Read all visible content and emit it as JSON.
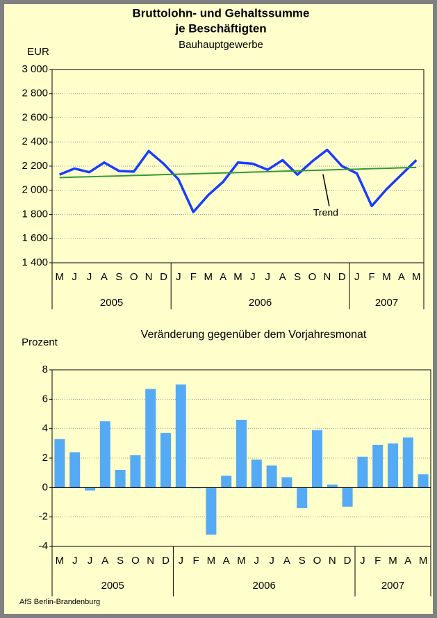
{
  "footer": "AfS Berlin-Brandenburg",
  "chart_data": [
    {
      "type": "line",
      "title": [
        "Bruttolohn- und Gehaltssumme",
        "je Beschäftigten"
      ],
      "subtitle": "Bauhauptgewerbe",
      "y_label": "EUR",
      "categories": [
        "M",
        "J",
        "J",
        "A",
        "S",
        "O",
        "N",
        "D",
        "J",
        "F",
        "M",
        "A",
        "M",
        "J",
        "J",
        "A",
        "S",
        "O",
        "N",
        "D",
        "J",
        "F",
        "M",
        "A",
        "M"
      ],
      "year_groups": [
        {
          "label": "2005",
          "span": 8
        },
        {
          "label": "2006",
          "span": 12
        },
        {
          "label": "2007",
          "span": 5
        }
      ],
      "series": [
        {
          "color": "#1a3cff",
          "values": [
            2130,
            2180,
            2150,
            2230,
            2160,
            2155,
            2325,
            2220,
            2090,
            1820,
            1960,
            2070,
            2230,
            2220,
            2170,
            2250,
            2130,
            2240,
            2335,
            2200,
            2140,
            1870,
            2010,
            2130,
            2250
          ]
        },
        {
          "name": "Trend",
          "color": "#339933",
          "values": [
            2105,
            2109,
            2112,
            2116,
            2119,
            2123,
            2126,
            2130,
            2133,
            2137,
            2140,
            2144,
            2147,
            2151,
            2154,
            2158,
            2161,
            2165,
            2168,
            2172,
            2175,
            2179,
            2182,
            2186,
            2189
          ]
        }
      ],
      "ylim": [
        1400,
        3000
      ],
      "yticks": [
        {
          "value": 1400,
          "label": "1 400"
        },
        {
          "value": 1600,
          "label": "1 600"
        },
        {
          "value": 1800,
          "label": "1 800"
        },
        {
          "value": 2000,
          "label": "2 000"
        },
        {
          "value": 2200,
          "label": "2 200"
        },
        {
          "value": 2400,
          "label": "2 400"
        },
        {
          "value": 2600,
          "label": "2 600"
        },
        {
          "value": 2800,
          "label": "2 800"
        },
        {
          "value": 3000,
          "label": "3 000"
        }
      ],
      "grid": true
    },
    {
      "type": "bar",
      "title": [
        "Veränderung gegenüber dem Vorjahresmonat"
      ],
      "y_label": "Prozent",
      "categories": [
        "M",
        "J",
        "J",
        "A",
        "S",
        "O",
        "N",
        "D",
        "J",
        "F",
        "M",
        "A",
        "M",
        "J",
        "J",
        "A",
        "S",
        "O",
        "N",
        "D",
        "J",
        "F",
        "M",
        "A",
        "M"
      ],
      "year_groups": [
        {
          "label": "2005",
          "span": 8
        },
        {
          "label": "2006",
          "span": 12
        },
        {
          "label": "2007",
          "span": 5
        }
      ],
      "series": [
        {
          "color": "#55aaf5",
          "values": [
            3.3,
            2.4,
            -0.2,
            4.5,
            1.2,
            2.2,
            6.7,
            3.7,
            7.0,
            -0.05,
            -3.2,
            0.8,
            4.6,
            1.9,
            1.5,
            0.7,
            -1.4,
            3.9,
            0.2,
            -1.3,
            2.1,
            2.9,
            3.0,
            3.4,
            0.9
          ]
        }
      ],
      "ylim": [
        -4,
        8
      ],
      "yticks": [
        -4,
        -2,
        0,
        2,
        4,
        6,
        8
      ],
      "grid": true
    }
  ]
}
